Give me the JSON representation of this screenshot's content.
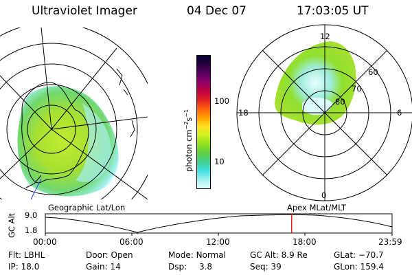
{
  "header": {
    "instrument": "Ultraviolet Imager",
    "date": "04 Dec 07",
    "time": "17:03:05 UT"
  },
  "colorbar": {
    "unit_label": "photon cm",
    "exp1": "−2",
    "mid": "s",
    "exp2": "−1",
    "ticks": [
      "100",
      "10"
    ],
    "colors": [
      "#000033",
      "#2a0040",
      "#5a0060",
      "#90006a",
      "#c00040",
      "#e02020",
      "#ff6010",
      "#ffa000",
      "#ffe020",
      "#d0f020",
      "#90e020",
      "#60d040",
      "#40d090",
      "#40e0e0",
      "#a0f0f0",
      "#e8ffff"
    ]
  },
  "polar": {
    "labels": {
      "top": "12",
      "left": "18",
      "right": "6",
      "bottom": "0"
    },
    "rings": [
      "60",
      "70",
      "80"
    ]
  },
  "panel_titles": {
    "geo": "Geographic Lat/Lon",
    "apex": "Apex MLat/MLT"
  },
  "timeline": {
    "ylabel": "GC Alt",
    "yticks": [
      "9.0",
      "1.8"
    ],
    "xticks": [
      "00:00",
      "06:00",
      "12:00",
      "18:00",
      "23:59"
    ],
    "marker_color": "#ff0000",
    "marker_time_hours": 17.05
  },
  "info": [
    [
      {
        "label": "Flt:",
        "value": "LBHL"
      },
      {
        "label": "Door:",
        "value": "Open"
      },
      {
        "label": "Mode:",
        "value": "Normal"
      },
      {
        "label": "GC Alt:",
        "value": "8.9 Re"
      },
      {
        "label": "GLat:",
        "value": "−70.7"
      }
    ],
    [
      {
        "label": "IP:",
        "value": "18.0"
      },
      {
        "label": "Gain:",
        "value": "14"
      },
      {
        "label": "Dsp:",
        "value": "3.8"
      },
      {
        "label": "Seq:",
        "value": "39"
      },
      {
        "label": "GLon:",
        "value": "159.4"
      }
    ]
  ]
}
